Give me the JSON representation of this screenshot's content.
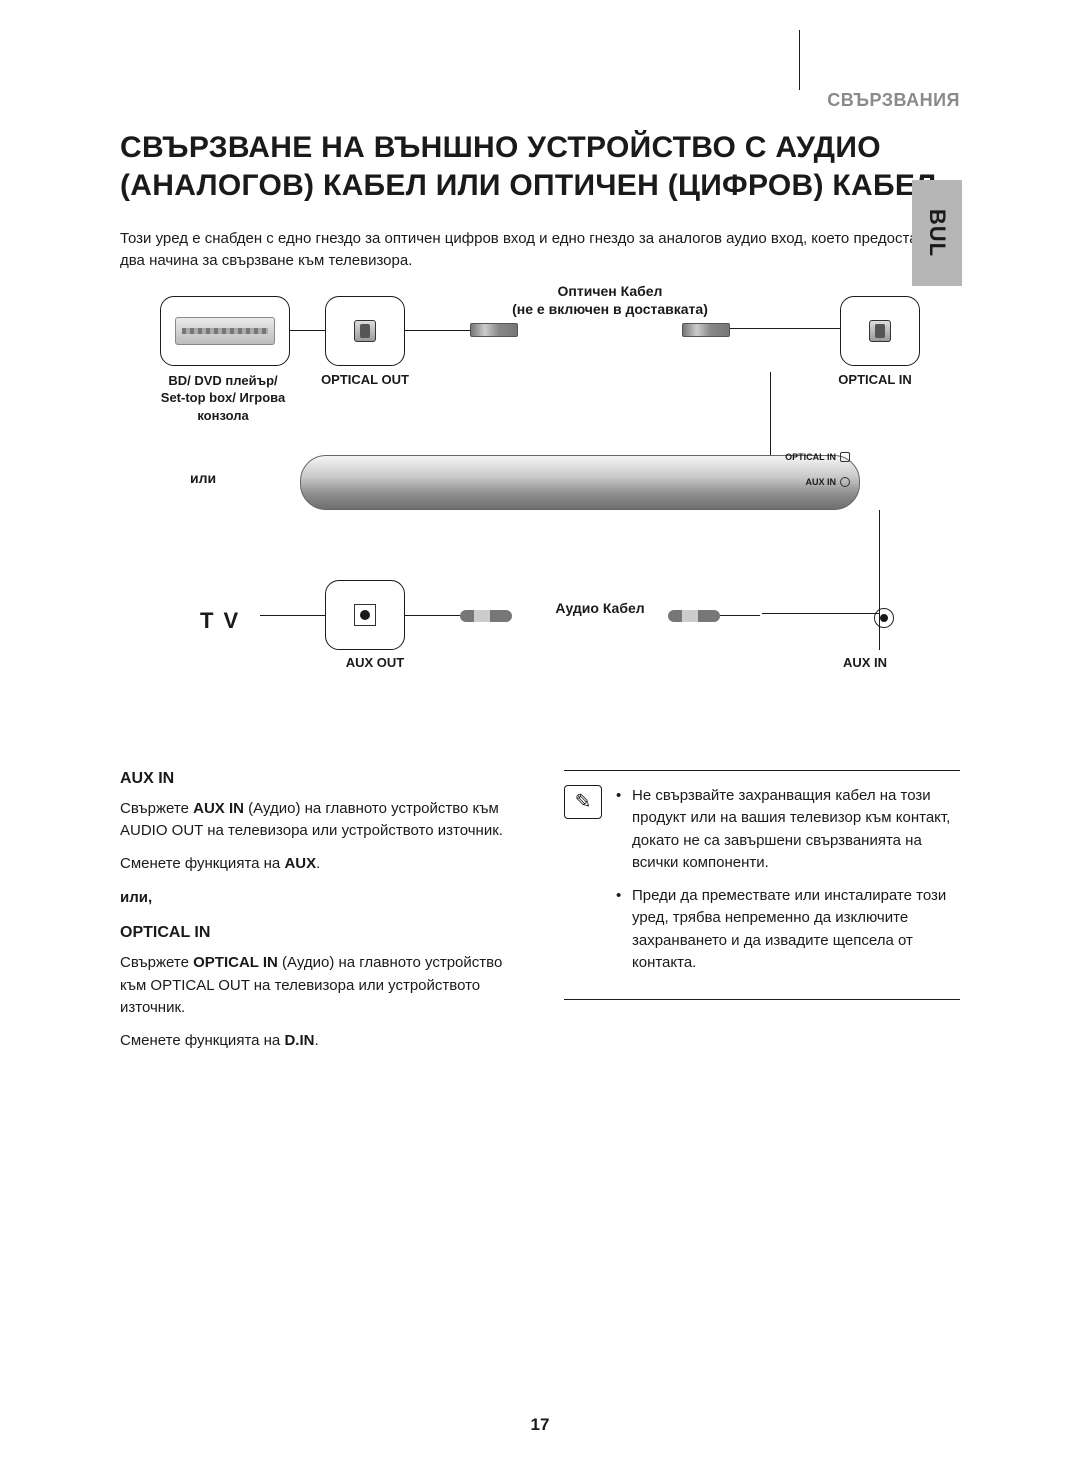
{
  "section_label": "СВЪРЗВАНИЯ",
  "title": "СВЪРЗВАНЕ НА ВЪНШНО УСТРОЙСТВО С АУДИО (АНАЛОГОВ) КАБЕЛ ИЛИ ОПТИЧЕН (ЦИФРОВ) КАБЕЛ",
  "intro": "Този уред е снабден с едно гнездо за оптичен цифров вход и едно гнездо за аналогов аудио вход, което предоставя два начина за свързване към телевизора.",
  "side_tab": "BUL",
  "diagram": {
    "optical_cable_label_1": "Оптичен Кабел",
    "optical_cable_label_2": "(не е включен в доставката)",
    "player_label": "BD/ DVD плейър/ Set-top box/ Игрова конзола",
    "optical_out": "OPTICAL OUT",
    "optical_in": "OPTICAL IN",
    "or": "или",
    "tv": "T V",
    "aux_out": "AUX OUT",
    "audio_cable": "Аудио Кабел",
    "aux_in": "AUX IN",
    "bar_optical_in": "OPTICAL IN",
    "bar_aux_in": "AUX IN"
  },
  "left_col": {
    "aux_in_heading": "AUX IN",
    "aux_in_p1_a": "Свържете ",
    "aux_in_p1_b": "AUX IN",
    "aux_in_p1_c": " (Аудио) на главното устройство към AUDIO OUT на телевизора или устройството източник.",
    "aux_in_p2_a": "Сменете функцията на ",
    "aux_in_p2_b": "AUX",
    "aux_in_p2_c": ".",
    "or": "или,",
    "optical_in_heading": "OPTICAL IN",
    "opt_p1_a": "Свържете ",
    "opt_p1_b": "OPTICAL IN",
    "opt_p1_c": " (Аудио) на главното устройство към OPTICAL OUT на телевизора или устройството източник.",
    "opt_p2_a": "Сменете функцията на ",
    "opt_p2_b": "D.IN",
    "opt_p2_c": "."
  },
  "notes": {
    "n1": "Не свързвайте захранващия кабел на този продукт или на вашия телевизор към контакт, докато не са завършени свързванията на всички компоненти.",
    "n2": "Преди да премествате или инсталирате този уред, трябва непременно да изключите захранването и да извадите щепсела от контакта."
  },
  "page_number": "17"
}
